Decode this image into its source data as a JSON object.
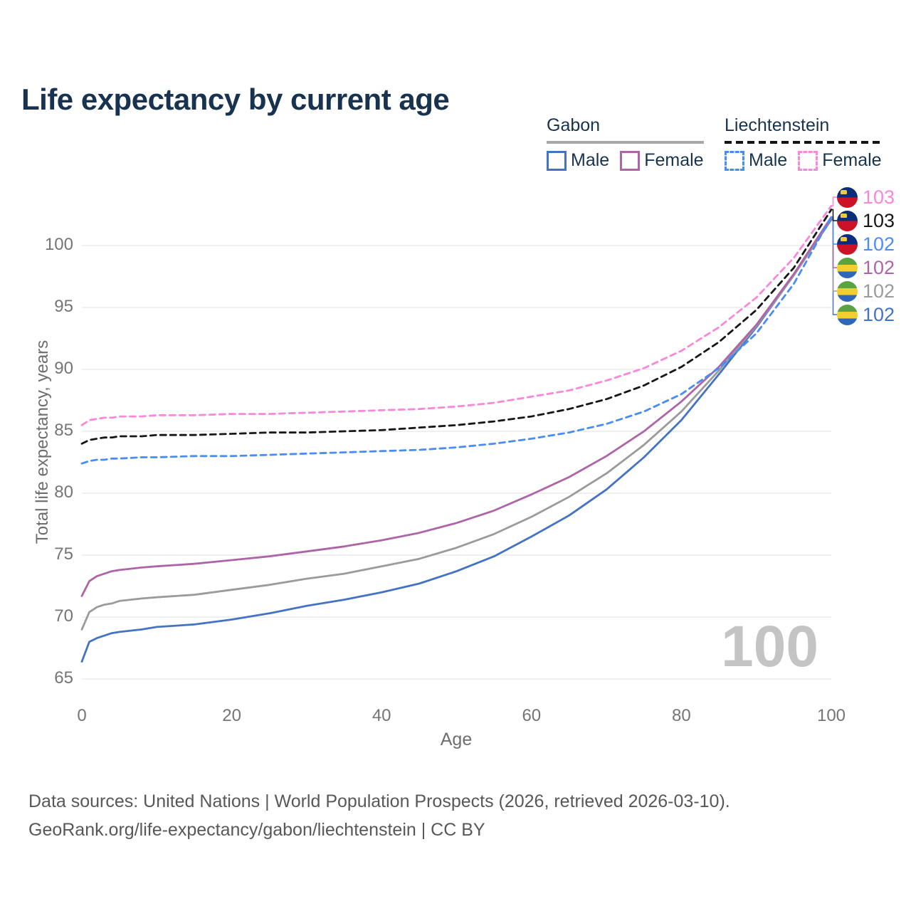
{
  "title": "Life expectancy by current age",
  "legend": {
    "groups": [
      {
        "label": "Gabon",
        "line_style": "solid",
        "underline_color": "#a8a8a8",
        "items": [
          {
            "label": "Male",
            "color": "#4473c5"
          },
          {
            "label": "Female",
            "color": "#ae65a8"
          }
        ]
      },
      {
        "label": "Liechtenstein",
        "line_style": "dashed",
        "underline_color": "#141414",
        "items": [
          {
            "label": "Male",
            "color": "#4a8cf7"
          },
          {
            "label": "Female",
            "color": "#fb87da"
          }
        ]
      }
    ]
  },
  "chart_data": {
    "type": "line",
    "title": "Life expectancy by current age",
    "xlabel": "Age",
    "ylabel": "Total life expectancy, years",
    "xlim": [
      0,
      100
    ],
    "ylim": [
      65,
      103.5
    ],
    "xticks": [
      0,
      20,
      40,
      60,
      80,
      100
    ],
    "yticks": [
      65,
      70,
      75,
      80,
      85,
      90,
      95,
      100
    ],
    "grid": "horizontal",
    "legend_position": "top-right",
    "x": [
      0,
      1,
      2,
      3,
      4,
      5,
      8,
      10,
      15,
      20,
      25,
      30,
      35,
      40,
      45,
      50,
      55,
      60,
      65,
      70,
      75,
      80,
      85,
      90,
      95,
      100
    ],
    "series": [
      {
        "name": "Gabon — Male",
        "country": "Gabon",
        "sex": "Male",
        "style": "solid",
        "color": "#4473c5",
        "label_row": 5,
        "values": [
          66.4,
          68.0,
          68.3,
          68.5,
          68.7,
          68.8,
          69.0,
          69.2,
          69.4,
          69.8,
          70.3,
          70.9,
          71.4,
          72.0,
          72.7,
          73.7,
          74.9,
          76.5,
          78.2,
          80.3,
          82.9,
          85.9,
          89.6,
          93.4,
          97.6,
          102.1
        ]
      },
      {
        "name": "Gabon — Both sexes",
        "country": "Gabon",
        "sex": "Both",
        "style": "solid",
        "color": "#9b9b9b",
        "label_row": 4,
        "values": [
          69.0,
          70.4,
          70.8,
          71.0,
          71.1,
          71.3,
          71.5,
          71.6,
          71.8,
          72.2,
          72.6,
          73.1,
          73.5,
          74.1,
          74.7,
          75.6,
          76.7,
          78.1,
          79.7,
          81.6,
          83.9,
          86.6,
          89.9,
          93.5,
          97.6,
          102.2
        ]
      },
      {
        "name": "Gabon — Female",
        "country": "Gabon",
        "sex": "Female",
        "style": "solid",
        "color": "#ae65a8",
        "label_row": 3,
        "values": [
          71.7,
          72.9,
          73.3,
          73.5,
          73.7,
          73.8,
          74.0,
          74.1,
          74.3,
          74.6,
          74.9,
          75.3,
          75.7,
          76.2,
          76.8,
          77.6,
          78.6,
          79.9,
          81.3,
          83.0,
          85.0,
          87.4,
          90.2,
          93.6,
          97.7,
          102.3
        ]
      },
      {
        "name": "Liechtenstein — Male",
        "country": "Liechtenstein",
        "sex": "Male",
        "style": "dashed",
        "color": "#4a8cf7",
        "label_row": 2,
        "values": [
          82.4,
          82.6,
          82.7,
          82.7,
          82.8,
          82.8,
          82.9,
          82.9,
          83.0,
          83.0,
          83.1,
          83.2,
          83.3,
          83.4,
          83.5,
          83.7,
          84.0,
          84.4,
          84.9,
          85.6,
          86.6,
          88.0,
          90.1,
          92.9,
          96.9,
          102.3
        ]
      },
      {
        "name": "Liechtenstein — Both sexes",
        "country": "Liechtenstein",
        "sex": "Both",
        "style": "dashed",
        "color": "#171717",
        "label_row": 1,
        "values": [
          84.0,
          84.3,
          84.4,
          84.5,
          84.5,
          84.6,
          84.6,
          84.7,
          84.7,
          84.8,
          84.9,
          84.9,
          85.0,
          85.1,
          85.3,
          85.5,
          85.8,
          86.2,
          86.8,
          87.6,
          88.7,
          90.2,
          92.2,
          94.8,
          98.2,
          102.9
        ]
      },
      {
        "name": "Liechtenstein — Female",
        "country": "Liechtenstein",
        "sex": "Female",
        "style": "dashed",
        "color": "#fb87da",
        "label_row": 0,
        "values": [
          85.5,
          85.9,
          86.0,
          86.1,
          86.1,
          86.2,
          86.2,
          86.3,
          86.3,
          86.4,
          86.4,
          86.5,
          86.6,
          86.7,
          86.8,
          87.0,
          87.3,
          87.8,
          88.3,
          89.1,
          90.1,
          91.5,
          93.4,
          95.8,
          99.0,
          103.2
        ]
      }
    ]
  },
  "axes": {
    "y_title": "Total life expectancy, years",
    "x_title": "Age"
  },
  "end_labels": [
    {
      "value": "103",
      "color": "#fb87da",
      "flag": "liechtenstein"
    },
    {
      "value": "103",
      "color": "#171717",
      "flag": "liechtenstein"
    },
    {
      "value": "102",
      "color": "#4a8cf7",
      "flag": "liechtenstein"
    },
    {
      "value": "102",
      "color": "#ae65a8",
      "flag": "gabon"
    },
    {
      "value": "102",
      "color": "#9b9b9b",
      "flag": "gabon"
    },
    {
      "value": "102",
      "color": "#4473c5",
      "flag": "gabon"
    }
  ],
  "watermark": "100",
  "footer": {
    "line1": "Data sources: United Nations | World Population Prospects (2026, retrieved 2026-03-10).",
    "line2": "GeoRank.org/life-expectancy/gabon/liechtenstein | CC BY"
  },
  "colors": {
    "title_text": "#17334f",
    "axis_text": "#757575",
    "gridline": "#ececec",
    "watermark": "#c4c4c4",
    "footer_text": "#58585a"
  }
}
